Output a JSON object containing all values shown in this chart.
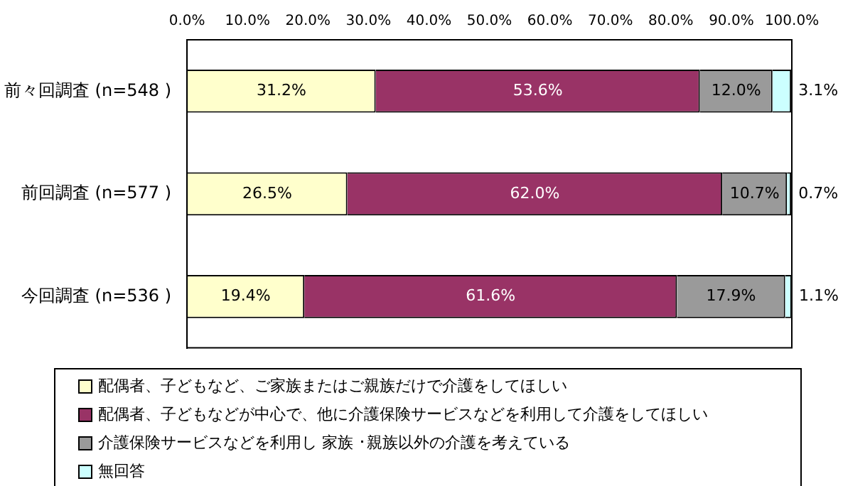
{
  "chart_data": {
    "type": "bar",
    "orientation": "horizontal",
    "stacked": true,
    "categories": [
      "前々回調査 (n=548 )",
      "前回調査 (n=577 )",
      "今回調査 (n=536 )"
    ],
    "series": [
      {
        "name": "配偶者、子どもなど、ご家族またはご親族だけで介護をしてほしい",
        "color": "#ffffcc",
        "values": [
          31.2,
          26.5,
          19.4
        ],
        "value_labels": [
          "31.2%",
          "26.5%",
          "19.4%"
        ]
      },
      {
        "name": "配偶者、子どもなどが中心で、他に介護保険サービスなどを利用して介護をしてほしい",
        "color": "#993366",
        "values": [
          53.6,
          62.0,
          61.6
        ],
        "value_labels": [
          "53.6%",
          "62.0%",
          "61.6%"
        ]
      },
      {
        "name": "介護保険サービスなどを利用し 家族 ･親族以外の介護を考えている",
        "color": "#9a9a9a",
        "values": [
          12.0,
          10.7,
          17.9
        ],
        "value_labels": [
          "12.0%",
          "10.7%",
          "17.9%"
        ]
      },
      {
        "name": "無回答",
        "color": "#ccffff",
        "values": [
          3.1,
          0.7,
          1.1
        ],
        "value_labels": [
          "3.1%",
          "0.7%",
          "1.1%"
        ]
      }
    ],
    "xlim": [
      0,
      100
    ],
    "xticks": [
      {
        "value": 0,
        "label": "0.0%"
      },
      {
        "value": 10,
        "label": "10.0%"
      },
      {
        "value": 20,
        "label": "20.0%"
      },
      {
        "value": 30,
        "label": "30.0%"
      },
      {
        "value": 40,
        "label": "40.0%"
      },
      {
        "value": 50,
        "label": "50.0%"
      },
      {
        "value": 60,
        "label": "60.0%"
      },
      {
        "value": 70,
        "label": "70.0%"
      },
      {
        "value": 80,
        "label": "80.0%"
      },
      {
        "value": 90,
        "label": "90.0%"
      },
      {
        "value": 100,
        "label": "100.0%"
      }
    ],
    "grid": false,
    "legend": "bottom"
  }
}
